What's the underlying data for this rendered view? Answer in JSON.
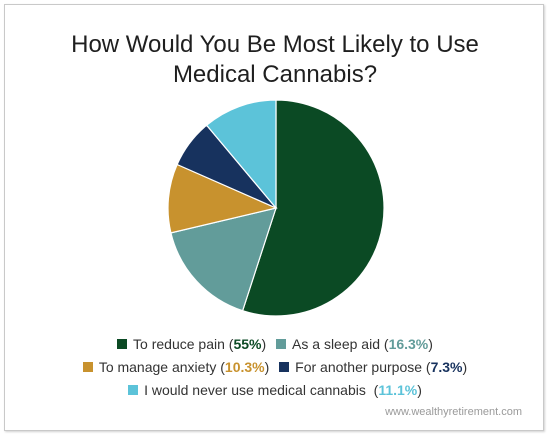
{
  "chart_data": {
    "type": "pie",
    "title_lines": [
      "How Would You Be Most Likely to Use",
      "Medical Cannabis?"
    ],
    "slices": [
      {
        "label": "To reduce pain",
        "value": 55,
        "value_label": "55%",
        "color": "#0b4a24"
      },
      {
        "label": "As a sleep aid",
        "value": 16.3,
        "value_label": "16.3%",
        "color": "#629c9a"
      },
      {
        "label": "To manage anxiety",
        "value": 10.3,
        "value_label": "10.3%",
        "color": "#c8922e"
      },
      {
        "label": "For another purpose",
        "value": 7.3,
        "value_label": "7.3%",
        "color": "#17325e"
      },
      {
        "label": "I would never use medical cannabis",
        "value": 11.1,
        "value_label": "11.1%",
        "color": "#5cc3d9"
      }
    ],
    "legend_placement": "bottom",
    "start_angle": "top",
    "direction": "clockwise"
  },
  "source": "www.wealthyretirement.com"
}
